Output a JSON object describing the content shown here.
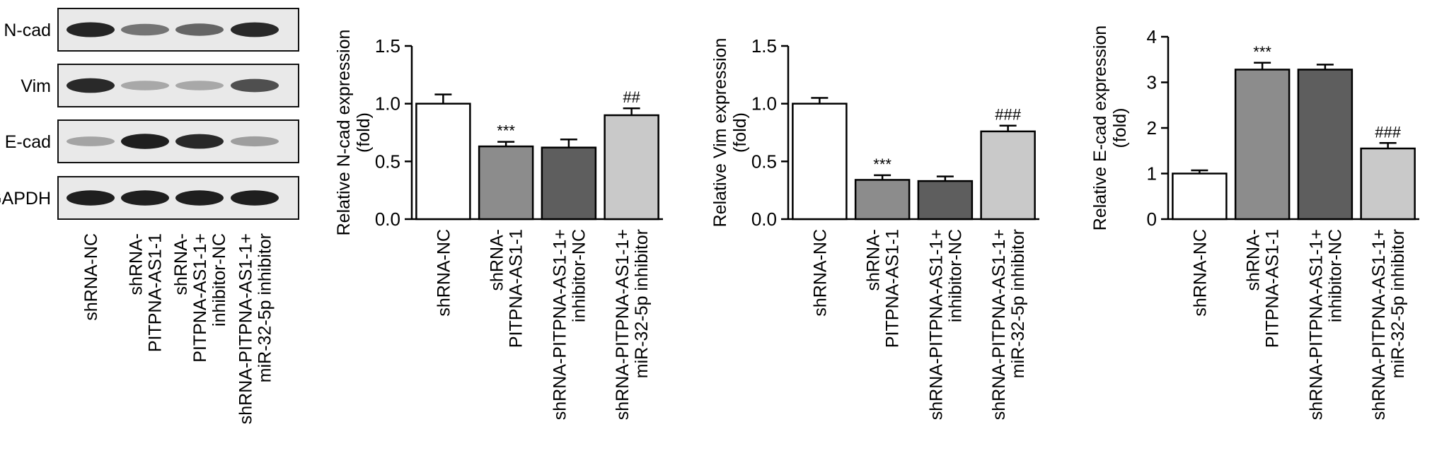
{
  "figure": {
    "western_blot": {
      "bands": [
        {
          "label": "N-cad",
          "intensities": [
            0.92,
            0.55,
            0.62,
            0.9
          ]
        },
        {
          "label": "Vim",
          "intensities": [
            0.9,
            0.3,
            0.3,
            0.72
          ]
        },
        {
          "label": "E-cad",
          "intensities": [
            0.32,
            0.95,
            0.9,
            0.35
          ]
        },
        {
          "label": "GAPDH",
          "intensities": [
            0.95,
            0.95,
            0.95,
            0.95
          ]
        }
      ],
      "lanes": [
        [
          "shRNA-NC"
        ],
        [
          "shRNA-",
          "PITPNA-AS1-1"
        ],
        [
          "shRNA-",
          "PITPNA-AS1-1+",
          "inhibitor-NC"
        ],
        [
          "shRNA-PITPNA-AS1-1+",
          "miR-32-5p inhibitor"
        ]
      ]
    }
  },
  "chart_data": [
    {
      "type": "bar",
      "ylabel": [
        "Relative N-cad expression",
        "(fold)"
      ],
      "categories": [
        [
          "shRNA-NC"
        ],
        [
          "shRNA-",
          "PITPNA-AS1-1"
        ],
        [
          "shRNA-PITPNA-AS1-1+",
          "inhibitor-NC"
        ],
        [
          "shRNA-PITPNA-AS1-1+",
          "miR-32-5p inhibitor"
        ]
      ],
      "values": [
        1.0,
        0.63,
        0.62,
        0.9
      ],
      "errors": [
        0.08,
        0.04,
        0.07,
        0.06
      ],
      "annotations": [
        "",
        "***",
        "",
        "##"
      ],
      "fills": [
        "#ffffff",
        "#8c8c8c",
        "#5e5e5e",
        "#c9c9c9"
      ],
      "ylim": [
        0,
        1.5
      ],
      "yticks": [
        "0.0",
        "0.5",
        "1.0",
        "1.5"
      ],
      "ytick_values": [
        0,
        0.5,
        1.0,
        1.5
      ]
    },
    {
      "type": "bar",
      "ylabel": [
        "Relative Vim expression",
        "(fold)"
      ],
      "categories": [
        [
          "shRNA-NC"
        ],
        [
          "shRNA-",
          "PITPNA-AS1-1"
        ],
        [
          "shRNA-PITPNA-AS1-1+",
          "inhibitor-NC"
        ],
        [
          "shRNA-PITPNA-AS1-1+",
          "miR-32-5p inhibitor"
        ]
      ],
      "values": [
        1.0,
        0.34,
        0.33,
        0.76
      ],
      "errors": [
        0.05,
        0.04,
        0.04,
        0.05
      ],
      "annotations": [
        "",
        "***",
        "",
        "###"
      ],
      "fills": [
        "#ffffff",
        "#8c8c8c",
        "#5e5e5e",
        "#c9c9c9"
      ],
      "ylim": [
        0,
        1.5
      ],
      "yticks": [
        "0.0",
        "0.5",
        "1.0",
        "1.5"
      ],
      "ytick_values": [
        0,
        0.5,
        1.0,
        1.5
      ]
    },
    {
      "type": "bar",
      "ylabel": [
        "Relative E-cad expression",
        "(fold)"
      ],
      "categories": [
        [
          "shRNA-NC"
        ],
        [
          "shRNA-",
          "PITPNA-AS1-1"
        ],
        [
          "shRNA-PITPNA-AS1-1+",
          "inhibitor-NC"
        ],
        [
          "shRNA-PITPNA-AS1-1+",
          "miR-32-5p inhibitor"
        ]
      ],
      "values": [
        1.0,
        3.28,
        3.28,
        1.55
      ],
      "errors": [
        0.07,
        0.15,
        0.11,
        0.12
      ],
      "annotations": [
        "",
        "***",
        "",
        "###"
      ],
      "fills": [
        "#ffffff",
        "#8c8c8c",
        "#5e5e5e",
        "#c9c9c9"
      ],
      "ylim": [
        0,
        4
      ],
      "yticks": [
        "0",
        "1",
        "2",
        "3",
        "4"
      ],
      "ytick_values": [
        0,
        1,
        2,
        3,
        4
      ]
    }
  ]
}
